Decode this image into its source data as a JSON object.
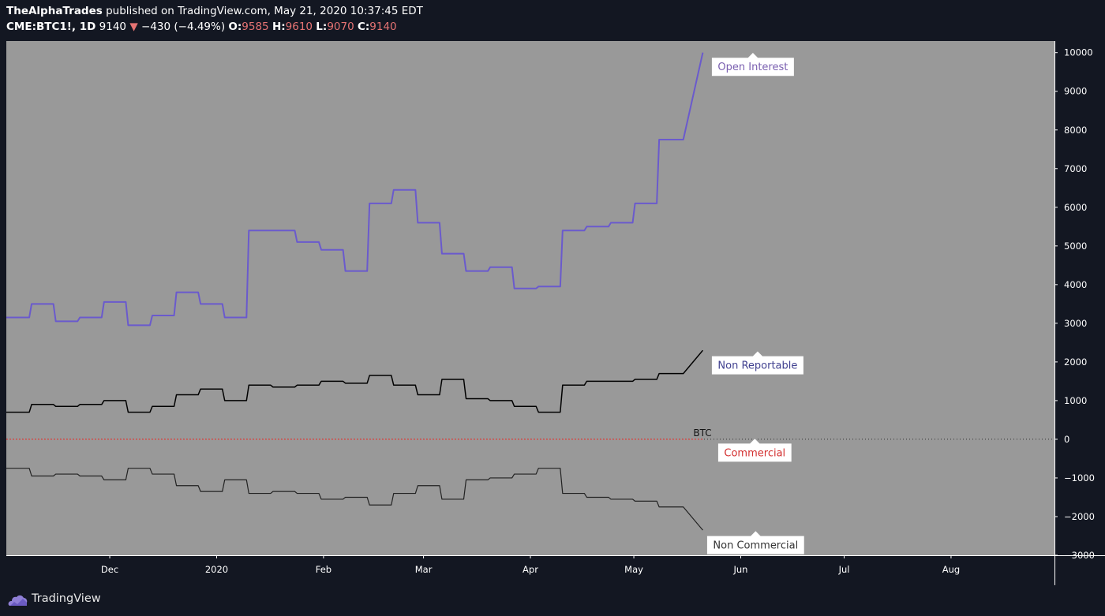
{
  "header": {
    "publisher": "TheAlphaTrades",
    "published_text": " published on TradingView.com, May 21, 2020 10:37:45 EDT",
    "symbol": "CME:BTC1!, 1D",
    "last": "9140",
    "change_arrow": "▼",
    "change": "−430 (−4.49%)",
    "open_label": "O:",
    "open": "9585",
    "high_label": "H:",
    "high": "9610",
    "low_label": "L:",
    "low": "9070",
    "close_label": "C:",
    "close": "9140"
  },
  "footer": {
    "brand": "TradingView",
    "logo_icon": "tradingview-logo-icon"
  },
  "colors": {
    "page_background": "#131722",
    "plot_background": "#999999",
    "open_interest": "#6a5acd",
    "non_reportable": "#000000",
    "commercial": "#e53935",
    "non_commercial": "#222222",
    "axis_text": "#ffffff",
    "header_red": "#e57373"
  },
  "chart_data": {
    "type": "line",
    "title": "",
    "ylim": [
      -3000,
      10300
    ],
    "xlim": [
      "2019-11-01",
      "2020-08-31"
    ],
    "y_ticks": [
      10000,
      9000,
      8000,
      7000,
      6000,
      5000,
      4000,
      3000,
      2000,
      1000,
      0,
      -1000,
      -2000,
      -3000
    ],
    "y_tick_labels": [
      "10000",
      "9000",
      "8000",
      "7000",
      "6000",
      "5000",
      "4000",
      "3000",
      "2000",
      "1000",
      "0",
      "−1000",
      "−2000",
      "−3000"
    ],
    "x_ticks": [
      {
        "label": "Dec",
        "date": "2019-12-01"
      },
      {
        "label": "2020",
        "date": "2020-01-01"
      },
      {
        "label": "Feb",
        "date": "2020-02-01"
      },
      {
        "label": "Mar",
        "date": "2020-03-01"
      },
      {
        "label": "Apr",
        "date": "2020-04-01"
      },
      {
        "label": "May",
        "date": "2020-05-01"
      },
      {
        "label": "Jun",
        "date": "2020-06-01"
      },
      {
        "label": "Jul",
        "date": "2020-07-01"
      },
      {
        "label": "Aug",
        "date": "2020-08-01"
      }
    ],
    "grid": false,
    "series": [
      {
        "name": "Open Interest",
        "step": true,
        "x": [
          "2019-11-01",
          "2019-11-08",
          "2019-11-15",
          "2019-11-22",
          "2019-11-29",
          "2019-12-06",
          "2019-12-13",
          "2019-12-20",
          "2019-12-27",
          "2020-01-03",
          "2020-01-10",
          "2020-01-17",
          "2020-01-24",
          "2020-01-31",
          "2020-02-07",
          "2020-02-14",
          "2020-02-21",
          "2020-02-28",
          "2020-03-06",
          "2020-03-13",
          "2020-03-20",
          "2020-03-27",
          "2020-04-03",
          "2020-04-10",
          "2020-04-17",
          "2020-04-24",
          "2020-05-01",
          "2020-05-08",
          "2020-05-15",
          "2020-05-21"
        ],
        "values": [
          3150,
          3500,
          3050,
          3150,
          3550,
          2950,
          3200,
          3800,
          3500,
          3150,
          5400,
          5400,
          5100,
          4900,
          4350,
          6100,
          6450,
          5600,
          4800,
          4350,
          4450,
          3900,
          3950,
          5400,
          5500,
          5600,
          6100,
          7750,
          7750,
          10000
        ]
      },
      {
        "name": "Non Reportable",
        "step": true,
        "x": [
          "2019-11-01",
          "2019-11-08",
          "2019-11-15",
          "2019-11-22",
          "2019-11-29",
          "2019-12-06",
          "2019-12-13",
          "2019-12-20",
          "2019-12-27",
          "2020-01-03",
          "2020-01-10",
          "2020-01-17",
          "2020-01-24",
          "2020-01-31",
          "2020-02-07",
          "2020-02-14",
          "2020-02-21",
          "2020-02-28",
          "2020-03-06",
          "2020-03-13",
          "2020-03-20",
          "2020-03-27",
          "2020-04-03",
          "2020-04-10",
          "2020-04-17",
          "2020-04-24",
          "2020-05-01",
          "2020-05-08",
          "2020-05-15",
          "2020-05-21"
        ],
        "values": [
          700,
          900,
          850,
          900,
          1000,
          700,
          850,
          1150,
          1300,
          1000,
          1400,
          1350,
          1400,
          1500,
          1450,
          1650,
          1400,
          1150,
          1550,
          1050,
          1000,
          850,
          700,
          1400,
          1500,
          1500,
          1550,
          1700,
          1700,
          2300
        ]
      },
      {
        "name": "Commercial",
        "step": false,
        "x": [
          "2019-11-01",
          "2020-05-21"
        ],
        "values": [
          0,
          0
        ]
      },
      {
        "name": "Non Commercial",
        "step": true,
        "x": [
          "2019-11-01",
          "2019-11-08",
          "2019-11-15",
          "2019-11-22",
          "2019-11-29",
          "2019-12-06",
          "2019-12-13",
          "2019-12-20",
          "2019-12-27",
          "2020-01-03",
          "2020-01-10",
          "2020-01-17",
          "2020-01-24",
          "2020-01-31",
          "2020-02-07",
          "2020-02-14",
          "2020-02-21",
          "2020-02-28",
          "2020-03-06",
          "2020-03-13",
          "2020-03-20",
          "2020-03-27",
          "2020-04-03",
          "2020-04-10",
          "2020-04-17",
          "2020-04-24",
          "2020-05-01",
          "2020-05-08",
          "2020-05-15",
          "2020-05-21"
        ],
        "values": [
          -750,
          -950,
          -900,
          -950,
          -1050,
          -750,
          -900,
          -1200,
          -1350,
          -1050,
          -1400,
          -1350,
          -1400,
          -1550,
          -1500,
          -1700,
          -1400,
          -1200,
          -1550,
          -1050,
          -1000,
          -900,
          -750,
          -1400,
          -1500,
          -1550,
          -1600,
          -1750,
          -1750,
          -2350
        ]
      }
    ],
    "labels": [
      {
        "text": "Open Interest",
        "series": "Open Interest"
      },
      {
        "text": "Non Reportable",
        "series": "Non Reportable"
      },
      {
        "text": "Commercial",
        "series": "Commercial"
      },
      {
        "text": "Non Commercial",
        "series": "Non Commercial"
      }
    ],
    "annotations": [
      {
        "text": "BTC",
        "x": "2020-05-21",
        "y": 0
      }
    ]
  }
}
